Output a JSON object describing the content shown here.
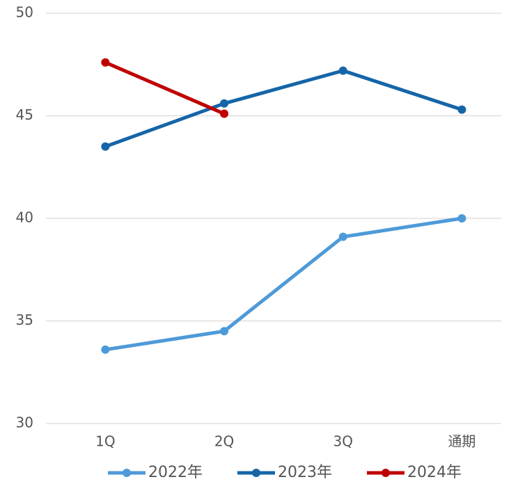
{
  "chart_data": {
    "type": "line",
    "categories": [
      "1Q",
      "2Q",
      "3Q",
      "通期"
    ],
    "series": [
      {
        "name": "2022年",
        "color": "#4e9ad8",
        "values": [
          33.6,
          34.5,
          39.1,
          40.0
        ]
      },
      {
        "name": "2023年",
        "color": "#1565a8",
        "values": [
          43.5,
          45.6,
          47.2,
          45.3
        ]
      },
      {
        "name": "2024年",
        "color": "#c00000",
        "values": [
          47.6,
          45.1,
          null,
          null
        ]
      }
    ],
    "ylim": [
      30,
      50
    ],
    "yticks": [
      30,
      35,
      40,
      45,
      50
    ],
    "grid": true,
    "legend": "bottom"
  }
}
